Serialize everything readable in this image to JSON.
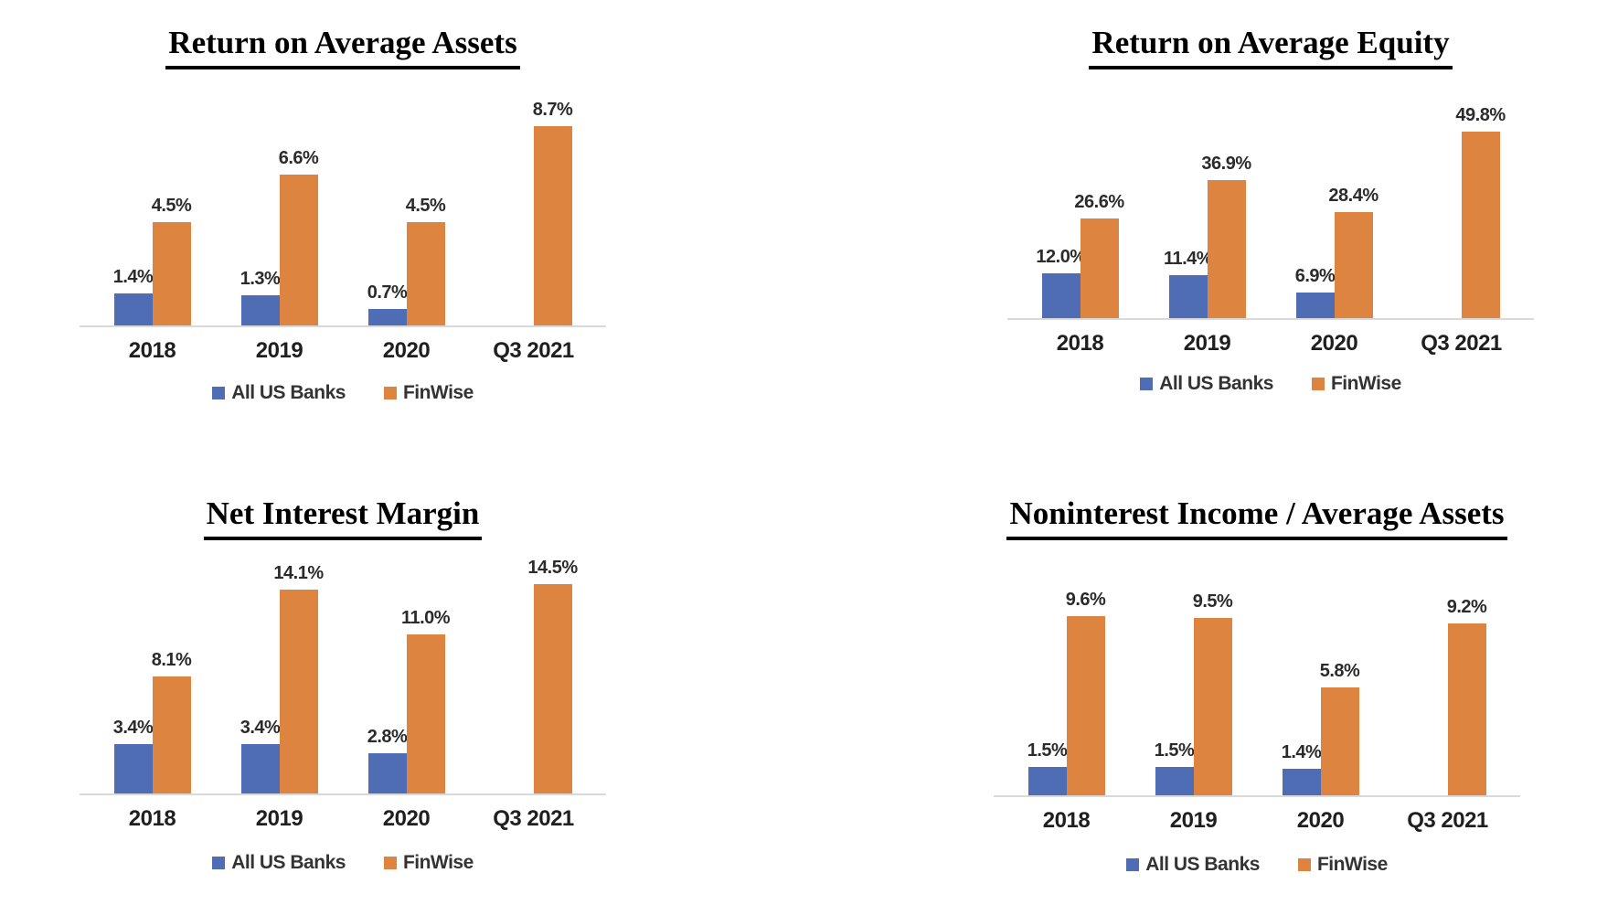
{
  "page": {
    "background_color": "#ffffff",
    "accent_blue": "#4F6DB4",
    "accent_orange": "#DD8441",
    "axis_line_color": "#d9d9d9"
  },
  "chart_data": [
    {
      "type": "bar",
      "title": "Return on Average Assets",
      "categories": [
        "2018",
        "2019",
        "2020",
        "Q3 2021"
      ],
      "series": [
        {
          "name": "All US Banks",
          "color": "#4F6DB4",
          "values": [
            1.4,
            1.3,
            0.7,
            null
          ]
        },
        {
          "name": "FinWise",
          "color": "#DD8441",
          "values": [
            4.5,
            6.6,
            4.5,
            8.7
          ]
        }
      ],
      "data_labels": [
        "1.4%",
        "1.3%",
        "0.7%",
        "4.5%",
        "6.6%",
        "4.5%",
        "8.7%"
      ],
      "unit": "%",
      "ylim": [
        0,
        8.7
      ],
      "grid": false,
      "legend_position": "bottom"
    },
    {
      "type": "bar",
      "title": "Return on Average Equity",
      "categories": [
        "2018",
        "2019",
        "2020",
        "Q3 2021"
      ],
      "series": [
        {
          "name": "All US Banks",
          "color": "#4F6DB4",
          "values": [
            12.0,
            11.4,
            6.9,
            null
          ]
        },
        {
          "name": "FinWise",
          "color": "#DD8441",
          "values": [
            26.6,
            36.9,
            28.4,
            49.8
          ]
        }
      ],
      "data_labels": [
        "12.0%",
        "11.4%",
        "6.9%",
        "26.6%",
        "36.9%",
        "28.4%",
        "49.8%"
      ],
      "unit": "%",
      "ylim": [
        0,
        49.8
      ],
      "grid": false,
      "legend_position": "bottom"
    },
    {
      "type": "bar",
      "title": "Net Interest Margin",
      "categories": [
        "2018",
        "2019",
        "2020",
        "Q3 2021"
      ],
      "series": [
        {
          "name": "All US Banks",
          "color": "#4F6DB4",
          "values": [
            3.4,
            3.4,
            2.8,
            null
          ]
        },
        {
          "name": "FinWise",
          "color": "#DD8441",
          "values": [
            8.1,
            14.1,
            11.0,
            14.5
          ]
        }
      ],
      "data_labels": [
        "3.4%",
        "3.4%",
        "2.8%",
        "8.1%",
        "14.1%",
        "11.0%",
        "14.5%"
      ],
      "unit": "%",
      "ylim": [
        0,
        14.5
      ],
      "grid": false,
      "legend_position": "bottom"
    },
    {
      "type": "bar",
      "title": "Noninterest Income / Average Assets",
      "categories": [
        "2018",
        "2019",
        "2020",
        "Q3 2021"
      ],
      "series": [
        {
          "name": "All US Banks",
          "color": "#4F6DB4",
          "values": [
            1.5,
            1.5,
            1.4,
            null
          ]
        },
        {
          "name": "FinWise",
          "color": "#DD8441",
          "values": [
            9.6,
            9.5,
            5.8,
            9.2
          ]
        }
      ],
      "data_labels": [
        "1.5%",
        "1.5%",
        "1.4%",
        "9.6%",
        "9.5%",
        "5.8%",
        "9.2%"
      ],
      "unit": "%",
      "ylim": [
        0,
        9.6
      ],
      "grid": false,
      "legend_position": "bottom"
    }
  ]
}
